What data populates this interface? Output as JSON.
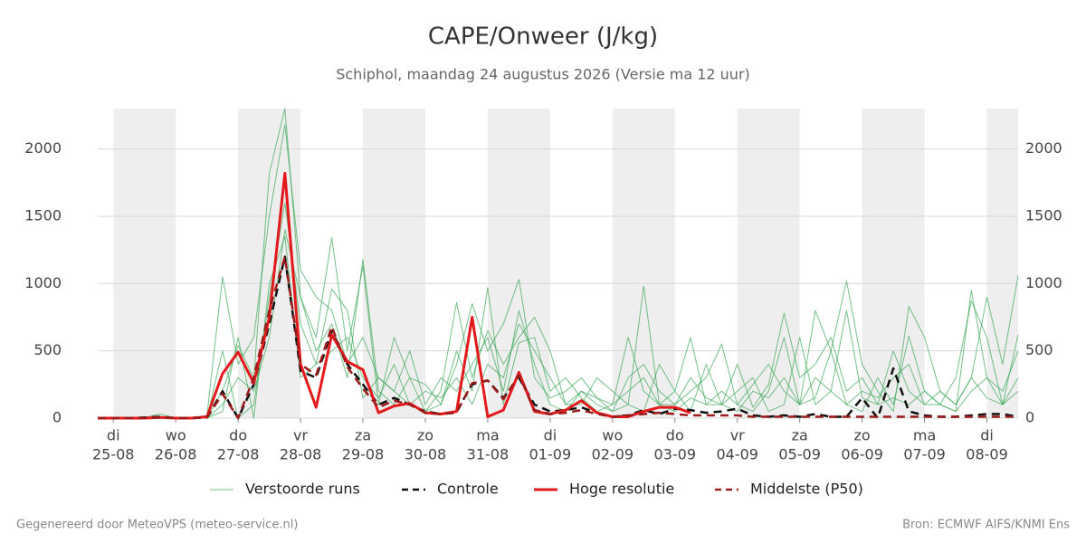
{
  "chart_data": {
    "type": "line",
    "title": "CAPE/Onweer (J/kg)",
    "subtitle": "Schiphol, maandag 24 augustus 2026 (Versie ma 12 uur)",
    "footer_left": "Gegenereerd door MeteoVPS (meteo-service.nl)",
    "footer_right": "Bron: ECMWF AIFS/KNMI Ens",
    "xlim": [
      -0.25,
      14.5
    ],
    "xticks": [
      {
        "value": 0,
        "label": "di",
        "date": "25-08"
      },
      {
        "value": 1,
        "label": "wo",
        "date": "26-08"
      },
      {
        "value": 2,
        "label": "do",
        "date": "27-08"
      },
      {
        "value": 3,
        "label": "vr",
        "date": "28-08"
      },
      {
        "value": 4,
        "label": "za",
        "date": "29-08"
      },
      {
        "value": 5,
        "label": "zo",
        "date": "30-08"
      },
      {
        "value": 6,
        "label": "ma",
        "date": "31-08"
      },
      {
        "value": 7,
        "label": "di",
        "date": "01-09"
      },
      {
        "value": 8,
        "label": "wo",
        "date": "02-09"
      },
      {
        "value": 9,
        "label": "do",
        "date": "03-09"
      },
      {
        "value": 10,
        "label": "vr",
        "date": "04-09"
      },
      {
        "value": 11,
        "label": "za",
        "date": "05-09"
      },
      {
        "value": 12,
        "label": "zo",
        "date": "06-09"
      },
      {
        "value": 13,
        "label": "ma",
        "date": "07-09"
      },
      {
        "value": 14,
        "label": "di",
        "date": "08-09"
      }
    ],
    "ylim": [
      0,
      2300
    ],
    "yticks": [
      0,
      500,
      1000,
      1500,
      2000
    ],
    "grid": true,
    "x": [
      -0.25,
      0,
      0.25,
      0.5,
      0.75,
      1,
      1.25,
      1.5,
      1.75,
      2,
      2.25,
      2.5,
      2.75,
      3,
      3.25,
      3.5,
      3.75,
      4,
      4.25,
      4.5,
      4.75,
      5,
      5.25,
      5.5,
      5.75,
      6,
      6.25,
      6.5,
      6.75,
      7,
      7.25,
      7.5,
      7.75,
      8,
      8.25,
      8.5,
      8.75,
      9,
      9.25,
      9.5,
      9.75,
      10,
      10.25,
      10.5,
      10.75,
      11,
      11.25,
      11.5,
      11.75,
      12,
      12.25,
      12.5,
      12.75,
      13,
      13.25,
      13.5,
      13.75,
      14,
      14.25,
      14.5
    ],
    "series": [
      {
        "name": "Verstoorde runs",
        "color": "#3aa655",
        "style": "thin",
        "runs": [
          [
            0,
            0,
            0,
            5,
            30,
            0,
            0,
            0,
            200,
            540,
            300,
            1820,
            2300,
            900,
            600,
            1340,
            500,
            1130,
            100,
            600,
            300,
            250,
            100,
            400,
            850,
            500,
            700,
            1030,
            300,
            150,
            200,
            300,
            150,
            50,
            100,
            980,
            100,
            200,
            50,
            400,
            100,
            50,
            200,
            150,
            300,
            100,
            800,
            500,
            1020,
            400,
            200,
            50,
            830,
            600,
            200,
            100,
            300,
            900,
            400,
            1060
          ],
          [
            0,
            0,
            0,
            0,
            10,
            0,
            0,
            20,
            1050,
            400,
            600,
            1500,
            2180,
            1100,
            900,
            800,
            400,
            600,
            300,
            200,
            500,
            100,
            300,
            200,
            400,
            600,
            200,
            800,
            400,
            100,
            50,
            200,
            100,
            50,
            300,
            400,
            200,
            100,
            200,
            300,
            550,
            100,
            50,
            200,
            600,
            100,
            300,
            200,
            100,
            50,
            300,
            100,
            610,
            200,
            100,
            300,
            870,
            600,
            100,
            620
          ],
          [
            0,
            0,
            0,
            0,
            0,
            0,
            0,
            0,
            500,
            0,
            100,
            900,
            1600,
            700,
            400,
            960,
            800,
            150,
            300,
            200,
            100,
            50,
            200,
            860,
            300,
            650,
            400,
            600,
            750,
            500,
            100,
            100,
            300,
            200,
            100,
            50,
            400,
            200,
            600,
            100,
            100,
            400,
            80,
            250,
            780,
            300,
            400,
            600,
            200,
            300,
            100,
            150,
            100,
            200,
            100,
            50,
            950,
            300,
            200,
            500
          ],
          [
            0,
            0,
            0,
            0,
            0,
            0,
            0,
            0,
            100,
            300,
            200,
            600,
            1400,
            900,
            500,
            700,
            300,
            1180,
            200,
            100,
            300,
            50,
            100,
            500,
            200,
            970,
            100,
            560,
            600,
            200,
            300,
            150,
            50,
            100,
            600,
            200,
            100,
            100,
            300,
            150,
            100,
            200,
            300,
            50,
            100,
            600,
            100,
            200,
            800,
            150,
            100,
            500,
            200,
            100,
            100,
            50,
            200,
            300,
            100,
            300
          ],
          [
            0,
            0,
            0,
            0,
            0,
            0,
            0,
            0,
            50,
            600,
            0,
            1000,
            1350,
            300,
            400,
            500,
            600,
            300,
            150,
            400,
            100,
            200,
            150,
            300,
            100,
            400,
            300,
            700,
            500,
            300,
            100,
            200,
            150,
            100,
            200,
            300,
            100,
            50,
            150,
            100,
            200,
            100,
            250,
            400,
            200,
            100,
            150,
            500,
            100,
            200,
            150,
            300,
            400,
            100,
            200,
            100,
            300,
            150,
            100,
            200
          ]
        ]
      },
      {
        "name": "Controle",
        "color": "#111111",
        "style": "dash",
        "values": [
          0,
          0,
          0,
          5,
          10,
          0,
          0,
          5,
          200,
          0,
          250,
          700,
          1200,
          350,
          300,
          650,
          400,
          250,
          100,
          150,
          100,
          50,
          30,
          50,
          250,
          280,
          150,
          300,
          100,
          50,
          60,
          80,
          40,
          10,
          20,
          60,
          30,
          70,
          60,
          40,
          50,
          70,
          20,
          10,
          20,
          10,
          30,
          10,
          10,
          150,
          0,
          370,
          50,
          20,
          10,
          10,
          20,
          30,
          30,
          10
        ]
      },
      {
        "name": "Hoge resolutie",
        "color": "#e3191c",
        "style": "thick",
        "values": [
          0,
          0,
          0,
          0,
          5,
          0,
          0,
          10,
          330,
          490,
          260,
          750,
          1820,
          400,
          80,
          620,
          420,
          360,
          40,
          90,
          110,
          40,
          30,
          50,
          750,
          10,
          60,
          340,
          50,
          30,
          60,
          130,
          40,
          10,
          10,
          50,
          80,
          80,
          40,
          null,
          null,
          null,
          null,
          null,
          null,
          null,
          null,
          null,
          null,
          null,
          null,
          null,
          null,
          null,
          null,
          null,
          null,
          null,
          null,
          null
        ]
      },
      {
        "name": "Middelste (P50)",
        "color": "#9b1c1c",
        "style": "dash",
        "values": [
          0,
          0,
          0,
          0,
          5,
          0,
          0,
          5,
          180,
          0,
          300,
          800,
          1200,
          400,
          320,
          680,
          380,
          220,
          80,
          130,
          100,
          40,
          30,
          40,
          260,
          280,
          140,
          320,
          60,
          30,
          40,
          60,
          30,
          10,
          20,
          30,
          40,
          30,
          20,
          20,
          20,
          20,
          10,
          10,
          10,
          10,
          10,
          10,
          10,
          10,
          10,
          10,
          10,
          10,
          10,
          10,
          10,
          10,
          10,
          10
        ]
      }
    ]
  }
}
